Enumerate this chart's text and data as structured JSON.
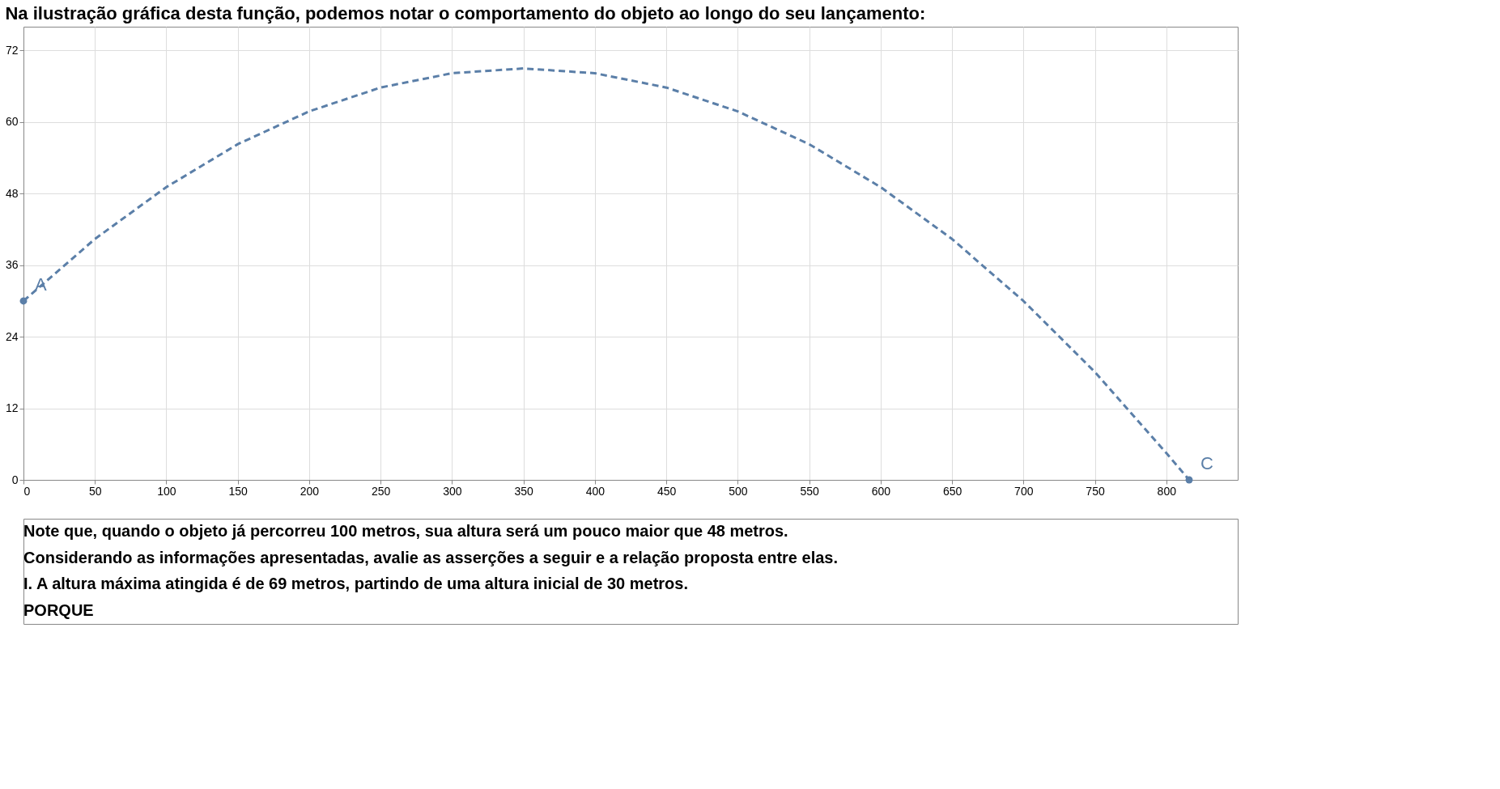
{
  "chart_data": {
    "type": "line",
    "title": "Na ilustração gráfica desta função, podemos notar o comportamento do objeto ao longo do seu lançamento:",
    "series": [
      {
        "color": "#5b7fa8",
        "line_style": "dashed",
        "marker": "none",
        "x": [
          0,
          50,
          100,
          150,
          200,
          250,
          300,
          350,
          400,
          450,
          500,
          550,
          600,
          650,
          700,
          750,
          800,
          816
        ],
        "values": [
          30,
          40.4,
          49.1,
          56.3,
          61.8,
          65.8,
          68.2,
          69,
          68.2,
          65.8,
          61.8,
          56.3,
          49.1,
          40.4,
          30,
          18.1,
          4.5,
          0
        ]
      },
      {
        "type": "scatter",
        "color": "#5b7fa8",
        "marker": "circle",
        "x": [
          0,
          816
        ],
        "values": [
          30,
          0
        ]
      }
    ],
    "annotations": [
      {
        "text": "A",
        "x": 0,
        "y": 30
      },
      {
        "text": "C",
        "x": 816,
        "y": 0
      },
      "Note que, quando o objeto já percorreu 100 metros, sua altura será um pouco maior que 48 metros.",
      "Considerando as informações apresentadas, avalie as asserções a seguir e a relação proposta entre elas.",
      "I. A altura máxima atingida é de 69 metros, partindo de uma altura inicial de 30 metros.",
      "PORQUE"
    ],
    "xlim": [
      0,
      850
    ],
    "xticks": [
      0,
      50,
      100,
      150,
      200,
      250,
      300,
      350,
      400,
      450,
      500,
      550,
      600,
      650,
      700,
      750,
      800
    ],
    "ylim": [
      0,
      76
    ],
    "yticks": [
      0,
      12,
      24,
      36,
      48,
      60,
      72
    ],
    "grid": true
  }
}
